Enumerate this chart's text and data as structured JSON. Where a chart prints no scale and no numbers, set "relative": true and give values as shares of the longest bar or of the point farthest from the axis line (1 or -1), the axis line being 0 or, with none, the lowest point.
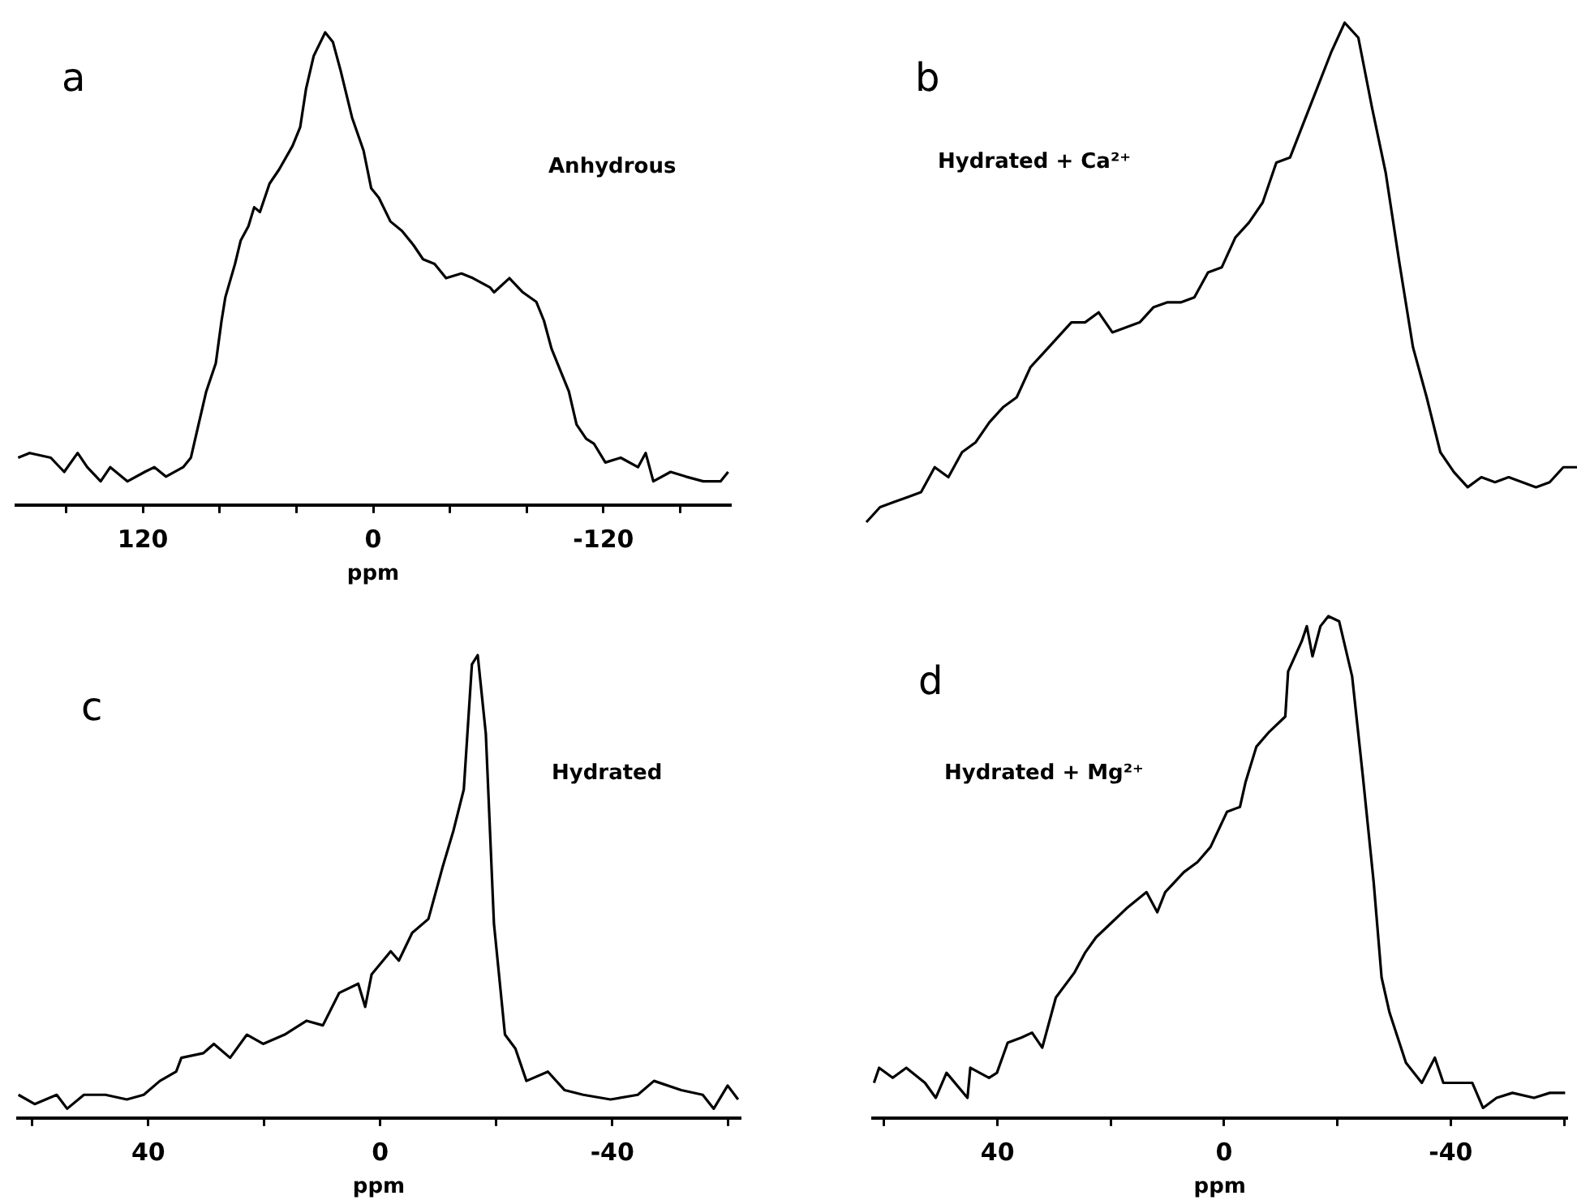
{
  "chart_data": [
    {
      "type": "line",
      "title": "a",
      "annotations": [
        "Anhydrous"
      ],
      "xlabel": "ppm",
      "relative": true,
      "marker": "none",
      "xlim": [
        186,
        -186
      ],
      "xticks": [
        {
          "value": 160,
          "label": null
        },
        120,
        {
          "value": 80,
          "label": null
        },
        {
          "value": 40,
          "label": null
        },
        0,
        {
          "value": -40,
          "label": null
        },
        {
          "value": -80,
          "label": null
        },
        -120,
        {
          "value": -160,
          "label": null
        }
      ],
      "x": [
        185,
        179,
        168,
        161,
        154,
        149,
        142,
        137,
        128,
        119,
        114,
        108,
        99,
        95,
        91,
        87,
        82,
        79,
        77,
        72,
        69,
        65,
        62,
        59,
        54,
        49,
        42,
        38,
        35,
        31,
        25,
        21,
        17,
        11,
        5,
        1,
        -3,
        -9,
        -15,
        -21,
        -26,
        -32,
        -38,
        -46,
        -52,
        -61,
        -63,
        -71,
        -78,
        -85,
        -89,
        -93,
        -99,
        -102,
        -106,
        -111,
        -115,
        -121,
        -129,
        -138,
        -142,
        -146,
        -155,
        -163,
        -172,
        -181,
        -185
      ],
      "series": [
        {
          "color": "#000000",
          "values": [
            0.1,
            0.11,
            0.1,
            0.07,
            0.11,
            0.08,
            0.05,
            0.08,
            0.05,
            0.07,
            0.08,
            0.06,
            0.08,
            0.1,
            0.17,
            0.24,
            0.3,
            0.39,
            0.44,
            0.51,
            0.56,
            0.59,
            0.63,
            0.62,
            0.68,
            0.71,
            0.76,
            0.8,
            0.88,
            0.95,
            1.0,
            0.98,
            0.92,
            0.82,
            0.75,
            0.67,
            0.65,
            0.6,
            0.58,
            0.55,
            0.52,
            0.51,
            0.48,
            0.49,
            0.48,
            0.46,
            0.45,
            0.48,
            0.45,
            0.43,
            0.39,
            0.33,
            0.27,
            0.24,
            0.17,
            0.14,
            0.13,
            0.09,
            0.1,
            0.08,
            0.11,
            0.05,
            0.07,
            0.06,
            0.05,
            0.05,
            0.07
          ]
        }
      ]
    },
    {
      "type": "line",
      "title": "b",
      "annotations": [
        "Hydrated + Ca²⁺"
      ],
      "relative": true,
      "marker": "none",
      "tick_labels": false,
      "categories": [
        null,
        null,
        null,
        null,
        null,
        null,
        null,
        null,
        null,
        null,
        null,
        null,
        null,
        null,
        null,
        null,
        null,
        null,
        null,
        null,
        null,
        null,
        null,
        null,
        null,
        null,
        null,
        null,
        null,
        null,
        null,
        null,
        null,
        null,
        null,
        null,
        null,
        null,
        null,
        null,
        null,
        null,
        null,
        null,
        null,
        null,
        null,
        null,
        null,
        null,
        null,
        null,
        null
      ],
      "series": [
        {
          "color": "#000000",
          "values": [
            0,
            0.03,
            0.04,
            0.05,
            0.06,
            0.11,
            0.09,
            0.14,
            0.16,
            0.2,
            0.23,
            0.25,
            0.31,
            0.34,
            0.37,
            0.4,
            0.4,
            0.42,
            0.38,
            0.39,
            0.4,
            0.43,
            0.44,
            0.44,
            0.45,
            0.5,
            0.51,
            0.57,
            0.6,
            0.64,
            0.72,
            0.73,
            0.8,
            0.87,
            0.94,
            1,
            0.97,
            0.83,
            0.7,
            0.52,
            0.35,
            0.25,
            0.14,
            0.1,
            0.07,
            0.09,
            0.08,
            0.09,
            0.08,
            0.07,
            0.08,
            0.11,
            0.11
          ]
        }
      ]
    },
    {
      "type": "line",
      "title": "c",
      "annotations": [
        "Hydrated"
      ],
      "xlabel": "ppm",
      "relative": true,
      "marker": "none",
      "xlim": [
        62.5,
        -62
      ],
      "xticks": [
        {
          "value": 60,
          "label": null
        },
        40,
        {
          "value": 20,
          "label": null
        },
        0,
        {
          "value": -20,
          "label": null
        },
        -40,
        {
          "value": -60,
          "label": null
        }
      ],
      "x": [
        62.4,
        59.6,
        55.8,
        54.0,
        51.1,
        47.4,
        43.7,
        40.8,
        38.0,
        35.2,
        34.3,
        30.5,
        28.7,
        25.9,
        23.0,
        20.2,
        16.5,
        12.7,
        9.9,
        7.1,
        3.8,
        2.6,
        1.5,
        -1.8,
        -3.2,
        -5.5,
        -8.3,
        -10.7,
        -12.6,
        -14.4,
        -15.8,
        -16.8,
        -18.2,
        -19.6,
        -21.5,
        -23.3,
        -25.2,
        -28.9,
        -31.8,
        -35.0,
        -39.7,
        -44.4,
        -47.2,
        -51.9,
        -55.6,
        -57.5,
        -59.9,
        -61.7
      ],
      "series": [
        {
          "color": "#000000",
          "values": [
            0.05,
            0.03,
            0.05,
            0.02,
            0.05,
            0.05,
            0.04,
            0.05,
            0.08,
            0.1,
            0.13,
            0.14,
            0.16,
            0.13,
            0.18,
            0.16,
            0.18,
            0.21,
            0.2,
            0.27,
            0.29,
            0.24,
            0.31,
            0.36,
            0.34,
            0.4,
            0.43,
            0.54,
            0.62,
            0.71,
            0.98,
            1.0,
            0.83,
            0.42,
            0.18,
            0.15,
            0.08,
            0.1,
            0.06,
            0.05,
            0.04,
            0.05,
            0.08,
            0.06,
            0.05,
            0.02,
            0.07,
            0.04
          ]
        }
      ]
    },
    {
      "type": "line",
      "title": "d",
      "annotations": [
        "Hydrated + Mg²⁺"
      ],
      "xlabel": "ppm",
      "relative": true,
      "marker": "none",
      "xlim": [
        62,
        -60.5
      ],
      "xticks": [
        {
          "value": 60,
          "label": null
        },
        40,
        {
          "value": 20,
          "label": null
        },
        0,
        {
          "value": -20,
          "label": null
        },
        -40,
        {
          "value": -60,
          "label": null
        }
      ],
      "x": [
        61.8,
        60.9,
        58.5,
        56.1,
        52.8,
        50.9,
        49.0,
        45.3,
        44.8,
        41.5,
        40.1,
        38.2,
        35.8,
        33.9,
        32.1,
        29.7,
        26.4,
        24.5,
        22.6,
        19.8,
        17.0,
        13.7,
        11.8,
        10.4,
        7.1,
        4.7,
        2.4,
        -0.5,
        -2.8,
        -3.8,
        -5.7,
        -8.0,
        -10.8,
        -11.3,
        -13.7,
        -14.6,
        -15.6,
        -17.0,
        -18.4,
        -20.3,
        -22.6,
        -24.5,
        -26.4,
        -27.8,
        -29.2,
        -32.1,
        -34.9,
        -37.2,
        -38.7,
        -41.5,
        -43.8,
        -45.7,
        -48.1,
        -50.9,
        -54.7,
        -57.5,
        -60.2
      ],
      "series": [
        {
          "color": "#000000",
          "values": [
            0.07,
            0.1,
            0.08,
            0.1,
            0.07,
            0.04,
            0.09,
            0.04,
            0.1,
            0.08,
            0.09,
            0.15,
            0.16,
            0.17,
            0.14,
            0.24,
            0.29,
            0.33,
            0.36,
            0.39,
            0.42,
            0.45,
            0.41,
            0.45,
            0.49,
            0.51,
            0.54,
            0.61,
            0.62,
            0.67,
            0.74,
            0.77,
            0.8,
            0.89,
            0.95,
            0.98,
            0.92,
            0.98,
            1.0,
            0.99,
            0.88,
            0.68,
            0.47,
            0.28,
            0.21,
            0.11,
            0.07,
            0.12,
            0.07,
            0.07,
            0.07,
            0.02,
            0.04,
            0.05,
            0.04,
            0.05,
            0.05
          ]
        }
      ]
    }
  ]
}
